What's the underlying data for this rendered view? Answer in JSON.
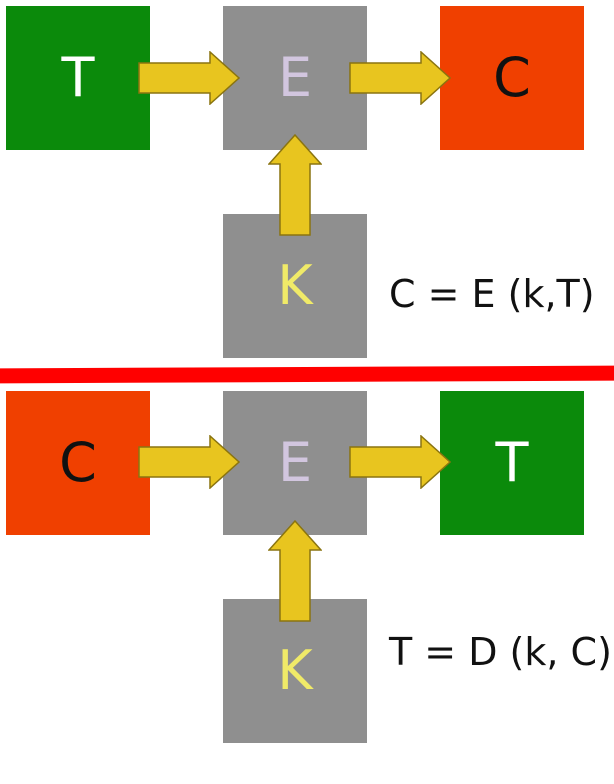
{
  "diagrams": [
    {
      "input": {
        "letter": "T",
        "color": "#0b8a0b"
      },
      "engine": {
        "letter": "E",
        "color": "#8f8f8f"
      },
      "output": {
        "letter": "C",
        "color": "#f04000"
      },
      "key": {
        "letter": "K",
        "color": "#8f8f8f"
      },
      "formula": "C = E (k,T)"
    },
    {
      "input": {
        "letter": "C",
        "color": "#f04000"
      },
      "engine": {
        "letter": "E",
        "color": "#8f8f8f"
      },
      "output": {
        "letter": "T",
        "color": "#0b8a0b"
      },
      "key": {
        "letter": "K",
        "color": "#8f8f8f"
      },
      "formula": "T = D (k, C)"
    }
  ],
  "colors": {
    "arrow_fill": "#e8c51f",
    "arrow_stroke": "#8a7410",
    "divider": "#ff0000"
  }
}
